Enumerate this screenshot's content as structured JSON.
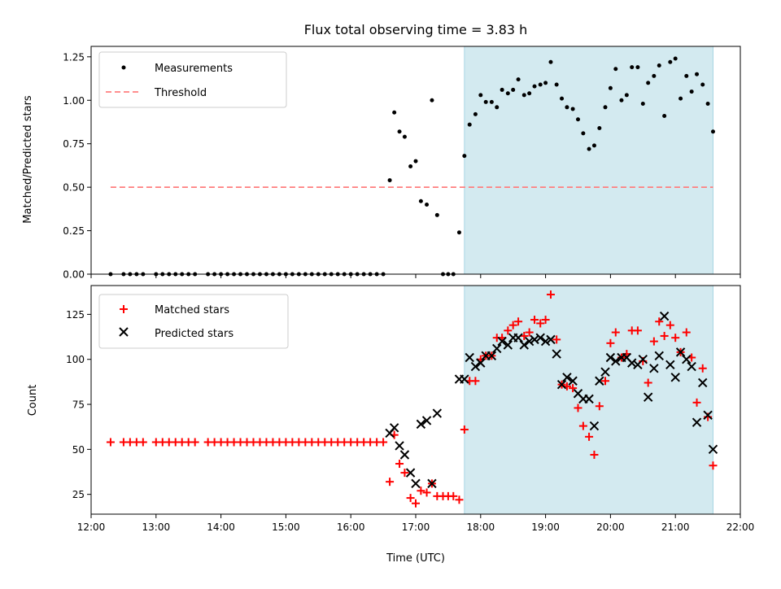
{
  "chart_data": {
    "title": "Flux total observing time = 3.83 h",
    "xlabel": "Time (UTC)",
    "xlim": [
      12.0,
      22.0
    ],
    "x_ticks": [
      12,
      13,
      14,
      15,
      16,
      17,
      18,
      19,
      20,
      21,
      22
    ],
    "x_tick_labels": [
      "12:00",
      "13:00",
      "14:00",
      "15:00",
      "16:00",
      "17:00",
      "18:00",
      "19:00",
      "20:00",
      "21:00",
      "22:00"
    ],
    "shaded_span": [
      17.75,
      21.58
    ],
    "shade_color": "#d3eaf0",
    "top": {
      "type": "scatter",
      "ylabel": "Matched/Predicted stars",
      "ylim": [
        0,
        1.31
      ],
      "y_ticks": [
        0,
        0.25,
        0.5,
        0.75,
        1.0,
        1.25
      ],
      "y_tick_labels": [
        "0.00",
        "0.25",
        "0.50",
        "0.75",
        "1.00",
        "1.25"
      ],
      "legend": {
        "position": "top-left",
        "entries": [
          "Measurements",
          "Threshold"
        ]
      },
      "threshold": {
        "name": "Threshold",
        "y": 0.5,
        "x_range": [
          12.3,
          21.58
        ],
        "color": "#ff7f7f"
      },
      "measurements": {
        "name": "Measurements",
        "color": "#000000",
        "x": [
          12.3,
          12.5,
          12.6,
          12.7,
          12.8,
          13.0,
          13.1,
          13.2,
          13.3,
          13.4,
          13.5,
          13.6,
          13.8,
          13.9,
          14.0,
          14.1,
          14.2,
          14.3,
          14.4,
          14.5,
          14.6,
          14.7,
          14.8,
          14.9,
          15.0,
          15.1,
          15.2,
          15.3,
          15.4,
          15.5,
          15.6,
          15.7,
          15.8,
          15.9,
          16.0,
          16.1,
          16.2,
          16.3,
          16.4,
          16.5,
          16.6,
          16.67,
          16.75,
          16.83,
          16.92,
          17.0,
          17.08,
          17.17,
          17.25,
          17.33,
          17.42,
          17.5,
          17.58,
          17.67,
          17.75,
          17.83,
          17.92,
          18.0,
          18.08,
          18.17,
          18.25,
          18.33,
          18.42,
          18.5,
          18.58,
          18.67,
          18.75,
          18.83,
          18.92,
          19.0,
          19.08,
          19.17,
          19.25,
          19.33,
          19.42,
          19.5,
          19.58,
          19.67,
          19.75,
          19.83,
          19.92,
          20.0,
          20.08,
          20.17,
          20.25,
          20.33,
          20.42,
          20.5,
          20.58,
          20.67,
          20.75,
          20.83,
          20.92,
          21.0,
          21.08,
          21.17,
          21.25,
          21.33,
          21.42,
          21.5,
          21.58
        ],
        "y": [
          0,
          0,
          0,
          0,
          0,
          0,
          0,
          0,
          0,
          0,
          0,
          0,
          0,
          0,
          0,
          0,
          0,
          0,
          0,
          0,
          0,
          0,
          0,
          0,
          0,
          0,
          0,
          0,
          0,
          0,
          0,
          0,
          0,
          0,
          0,
          0,
          0,
          0,
          0,
          0,
          0.54,
          0.93,
          0.82,
          0.79,
          0.62,
          0.65,
          0.42,
          0.4,
          1.0,
          0.34,
          0.0,
          0.0,
          0.0,
          0.24,
          0.68,
          0.86,
          0.92,
          1.03,
          0.99,
          0.99,
          0.96,
          1.06,
          1.04,
          1.06,
          1.12,
          1.03,
          1.04,
          1.08,
          1.09,
          1.1,
          1.22,
          1.09,
          1.01,
          0.96,
          0.95,
          0.89,
          0.81,
          0.72,
          0.74,
          0.84,
          0.96,
          1.07,
          1.18,
          1.0,
          1.03,
          1.19,
          1.19,
          0.98,
          1.1,
          1.14,
          1.2,
          0.91,
          1.22,
          1.24,
          1.01,
          1.14,
          1.05,
          1.15,
          1.09,
          0.98,
          0.82
        ]
      }
    },
    "bottom": {
      "type": "scatter",
      "ylabel": "Count",
      "ylim": [
        14,
        141
      ],
      "y_ticks": [
        25,
        50,
        75,
        100,
        125
      ],
      "y_tick_labels": [
        "25",
        "50",
        "75",
        "100",
        "125"
      ],
      "legend": {
        "position": "top-left",
        "entries": [
          "Matched stars",
          "Predicted stars"
        ]
      },
      "matched": {
        "name": "Matched stars",
        "color": "#ff0000",
        "marker": "+",
        "x": [
          12.3,
          12.5,
          12.6,
          12.7,
          12.8,
          13.0,
          13.1,
          13.2,
          13.3,
          13.4,
          13.5,
          13.6,
          13.8,
          13.9,
          14.0,
          14.1,
          14.2,
          14.3,
          14.4,
          14.5,
          14.6,
          14.7,
          14.8,
          14.9,
          15.0,
          15.1,
          15.2,
          15.3,
          15.4,
          15.5,
          15.6,
          15.7,
          15.8,
          15.9,
          16.0,
          16.1,
          16.2,
          16.3,
          16.4,
          16.5,
          16.6,
          16.67,
          16.75,
          16.83,
          16.92,
          17.0,
          17.08,
          17.17,
          17.25,
          17.33,
          17.42,
          17.5,
          17.58,
          17.67,
          17.75,
          17.83,
          17.92,
          18.0,
          18.08,
          18.17,
          18.25,
          18.33,
          18.42,
          18.5,
          18.58,
          18.67,
          18.75,
          18.83,
          18.92,
          19.0,
          19.08,
          19.17,
          19.25,
          19.33,
          19.42,
          19.5,
          19.58,
          19.67,
          19.75,
          19.83,
          19.92,
          20.0,
          20.08,
          20.17,
          20.25,
          20.33,
          20.42,
          20.5,
          20.58,
          20.67,
          20.75,
          20.83,
          20.92,
          21.0,
          21.08,
          21.17,
          21.25,
          21.33,
          21.42,
          21.5,
          21.58
        ],
        "y": [
          54,
          54,
          54,
          54,
          54,
          54,
          54,
          54,
          54,
          54,
          54,
          54,
          54,
          54,
          54,
          54,
          54,
          54,
          54,
          54,
          54,
          54,
          54,
          54,
          54,
          54,
          54,
          54,
          54,
          54,
          54,
          54,
          54,
          54,
          54,
          54,
          54,
          54,
          54,
          54,
          32,
          58,
          42,
          37,
          23,
          20,
          27,
          26,
          31,
          24,
          24,
          24,
          24,
          22,
          61,
          88,
          88,
          100,
          102,
          102,
          112,
          112,
          116,
          119,
          121,
          113,
          115,
          122,
          120,
          122,
          136,
          111,
          86,
          85,
          84,
          73,
          63,
          57,
          47,
          74,
          88,
          109,
          115,
          101,
          103,
          116,
          116,
          99,
          87,
          110,
          121,
          113,
          119,
          112,
          104,
          115,
          101,
          76,
          95,
          68,
          41
        ]
      },
      "predicted": {
        "name": "Predicted stars",
        "color": "#000000",
        "marker": "x",
        "x": [
          16.6,
          16.67,
          16.75,
          16.83,
          16.92,
          17.0,
          17.08,
          17.17,
          17.25,
          17.33,
          17.67,
          17.75,
          17.83,
          17.92,
          18.0,
          18.08,
          18.17,
          18.25,
          18.33,
          18.42,
          18.5,
          18.58,
          18.67,
          18.75,
          18.83,
          18.92,
          19.0,
          19.08,
          19.17,
          19.25,
          19.33,
          19.42,
          19.5,
          19.58,
          19.67,
          19.75,
          19.83,
          19.92,
          20.0,
          20.08,
          20.17,
          20.25,
          20.33,
          20.42,
          20.5,
          20.58,
          20.67,
          20.75,
          20.83,
          20.92,
          21.0,
          21.08,
          21.17,
          21.25,
          21.33,
          21.42,
          21.5,
          21.58
        ],
        "y": [
          59,
          62,
          52,
          47,
          37,
          31,
          64,
          66,
          31,
          70,
          89,
          89,
          101,
          96,
          98,
          102,
          102,
          106,
          110,
          108,
          112,
          112,
          108,
          110,
          111,
          112,
          110,
          111,
          103,
          86,
          90,
          88,
          81,
          78,
          78,
          63,
          88,
          93,
          101,
          99,
          101,
          101,
          98,
          97,
          100,
          79,
          95,
          102,
          124,
          97,
          90,
          104,
          100,
          96,
          65,
          87,
          69,
          50
        ]
      }
    }
  }
}
